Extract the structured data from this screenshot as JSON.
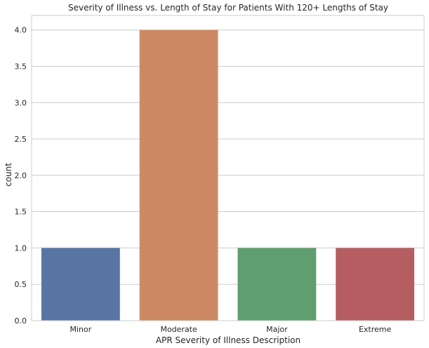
{
  "chart_data": {
    "type": "bar",
    "title": "Severity of Illness vs. Length of Stay for Patients With 120+ Lengths of Stay",
    "xlabel": "APR Severity of Illness Description",
    "ylabel": "count",
    "categories": [
      "Minor",
      "Moderate",
      "Major",
      "Extreme"
    ],
    "values": [
      1,
      4,
      1,
      1
    ],
    "colors": [
      "#5875a4",
      "#cc8963",
      "#5f9e6e",
      "#b55d60"
    ],
    "ylim": [
      0,
      4.2
    ],
    "yticks": [
      0.0,
      0.5,
      1.0,
      1.5,
      2.0,
      2.5,
      3.0,
      3.5,
      4.0
    ],
    "ytick_labels": [
      "0.0",
      "0.5",
      "1.0",
      "1.5",
      "2.0",
      "2.5",
      "3.0",
      "3.5",
      "4.0"
    ],
    "grid": "horizontal",
    "grid_color": "#cccccc",
    "background": "#ffffff"
  }
}
